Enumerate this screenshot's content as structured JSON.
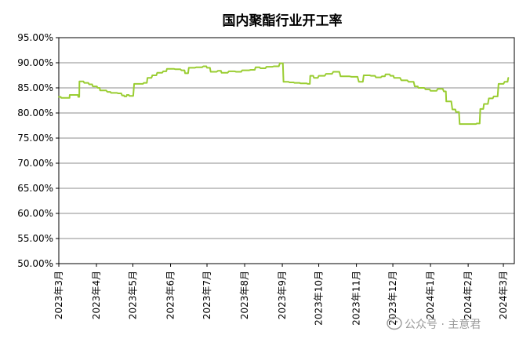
{
  "watermark": {
    "text": "公众号 · 主意君",
    "icon": "wechat-bubble-icon",
    "color": "#aaaaaa"
  },
  "chart_data": {
    "type": "line",
    "title": "国内聚酯行业开工率",
    "xlabel": "",
    "ylabel": "",
    "ylim": [
      50,
      95
    ],
    "yticks": [
      50,
      55,
      60,
      65,
      70,
      75,
      80,
      85,
      90,
      95
    ],
    "ytick_labels": [
      "50.00%",
      "55.00%",
      "60.00%",
      "65.00%",
      "70.00%",
      "75.00%",
      "80.00%",
      "85.00%",
      "90.00%",
      "95.00%"
    ],
    "xlim": [
      "2023-03-01",
      "2024-03-10"
    ],
    "xticks": [
      "2023-03-01",
      "2023-04-01",
      "2023-05-01",
      "2023-06-01",
      "2023-07-01",
      "2023-08-01",
      "2023-09-01",
      "2023-10-01",
      "2023-11-01",
      "2023-12-01",
      "2024-01-01",
      "2024-02-01",
      "2024-03-01"
    ],
    "xtick_labels": [
      "2023年3月",
      "2023年4月",
      "2023年5月",
      "2023年6月",
      "2023年7月",
      "2023年8月",
      "2023年9月",
      "2023年10月",
      "2023年11月",
      "2023年12月",
      "2024年1月",
      "2024年2月",
      "2024年3月"
    ],
    "grid": "horizontal",
    "legend": "none",
    "series": [
      {
        "color": "#9acd32",
        "points": [
          [
            "2023-03-01",
            83.2
          ],
          [
            "2023-03-03",
            83.0
          ],
          [
            "2023-03-09",
            83.0
          ],
          [
            "2023-03-10",
            83.6
          ],
          [
            "2023-03-16",
            83.6
          ],
          [
            "2023-03-17",
            83.2
          ],
          [
            "2023-03-18",
            86.3
          ],
          [
            "2023-03-22",
            86.0
          ],
          [
            "2023-03-26",
            85.7
          ],
          [
            "2023-03-29",
            85.3
          ],
          [
            "2023-04-02",
            85.0
          ],
          [
            "2023-04-04",
            84.5
          ],
          [
            "2023-04-10",
            84.2
          ],
          [
            "2023-04-13",
            84.0
          ],
          [
            "2023-04-19",
            83.9
          ],
          [
            "2023-04-22",
            83.5
          ],
          [
            "2023-04-24",
            83.3
          ],
          [
            "2023-04-26",
            83.6
          ],
          [
            "2023-04-28",
            83.4
          ],
          [
            "2023-05-02",
            85.8
          ],
          [
            "2023-05-06",
            85.8
          ],
          [
            "2023-05-10",
            86.0
          ],
          [
            "2023-05-13",
            87.0
          ],
          [
            "2023-05-17",
            87.5
          ],
          [
            "2023-05-21",
            88.0
          ],
          [
            "2023-05-26",
            88.3
          ],
          [
            "2023-05-29",
            88.8
          ],
          [
            "2023-06-05",
            88.7
          ],
          [
            "2023-06-10",
            88.5
          ],
          [
            "2023-06-13",
            87.9
          ],
          [
            "2023-06-16",
            89.0
          ],
          [
            "2023-06-22",
            89.1
          ],
          [
            "2023-06-28",
            89.3
          ],
          [
            "2023-07-01",
            89.0
          ],
          [
            "2023-07-04",
            88.2
          ],
          [
            "2023-07-10",
            88.4
          ],
          [
            "2023-07-13",
            88.0
          ],
          [
            "2023-07-19",
            88.3
          ],
          [
            "2023-07-25",
            88.2
          ],
          [
            "2023-07-30",
            88.5
          ],
          [
            "2023-08-06",
            88.6
          ],
          [
            "2023-08-10",
            89.1
          ],
          [
            "2023-08-14",
            88.9
          ],
          [
            "2023-08-19",
            89.2
          ],
          [
            "2023-08-25",
            89.3
          ],
          [
            "2023-08-30",
            89.9
          ],
          [
            "2023-09-02",
            86.2
          ],
          [
            "2023-09-07",
            86.1
          ],
          [
            "2023-09-11",
            86.0
          ],
          [
            "2023-09-16",
            85.9
          ],
          [
            "2023-09-22",
            85.8
          ],
          [
            "2023-09-24",
            87.4
          ],
          [
            "2023-09-27",
            87.0
          ],
          [
            "2023-10-01",
            87.4
          ],
          [
            "2023-10-07",
            87.8
          ],
          [
            "2023-10-13",
            88.2
          ],
          [
            "2023-10-19",
            87.3
          ],
          [
            "2023-10-28",
            87.2
          ],
          [
            "2023-11-03",
            86.2
          ],
          [
            "2023-11-07",
            87.5
          ],
          [
            "2023-11-13",
            87.4
          ],
          [
            "2023-11-17",
            87.1
          ],
          [
            "2023-11-22",
            87.3
          ],
          [
            "2023-11-25",
            87.7
          ],
          [
            "2023-11-29",
            87.4
          ],
          [
            "2023-12-02",
            87.0
          ],
          [
            "2023-12-08",
            86.5
          ],
          [
            "2023-12-14",
            86.2
          ],
          [
            "2023-12-19",
            85.3
          ],
          [
            "2023-12-22",
            85.0
          ],
          [
            "2023-12-28",
            84.7
          ],
          [
            "2024-01-01",
            84.4
          ],
          [
            "2024-01-07",
            84.8
          ],
          [
            "2024-01-12",
            84.3
          ],
          [
            "2024-01-14",
            82.3
          ],
          [
            "2024-01-19",
            80.7
          ],
          [
            "2024-01-22",
            80.2
          ],
          [
            "2024-01-25",
            77.8
          ],
          [
            "2024-02-05",
            77.8
          ],
          [
            "2024-02-08",
            77.9
          ],
          [
            "2024-02-11",
            80.8
          ],
          [
            "2024-02-14",
            81.8
          ],
          [
            "2024-02-18",
            82.9
          ],
          [
            "2024-02-22",
            83.3
          ],
          [
            "2024-02-26",
            85.8
          ],
          [
            "2024-03-02",
            86.2
          ],
          [
            "2024-03-05",
            87.0
          ]
        ]
      }
    ]
  }
}
